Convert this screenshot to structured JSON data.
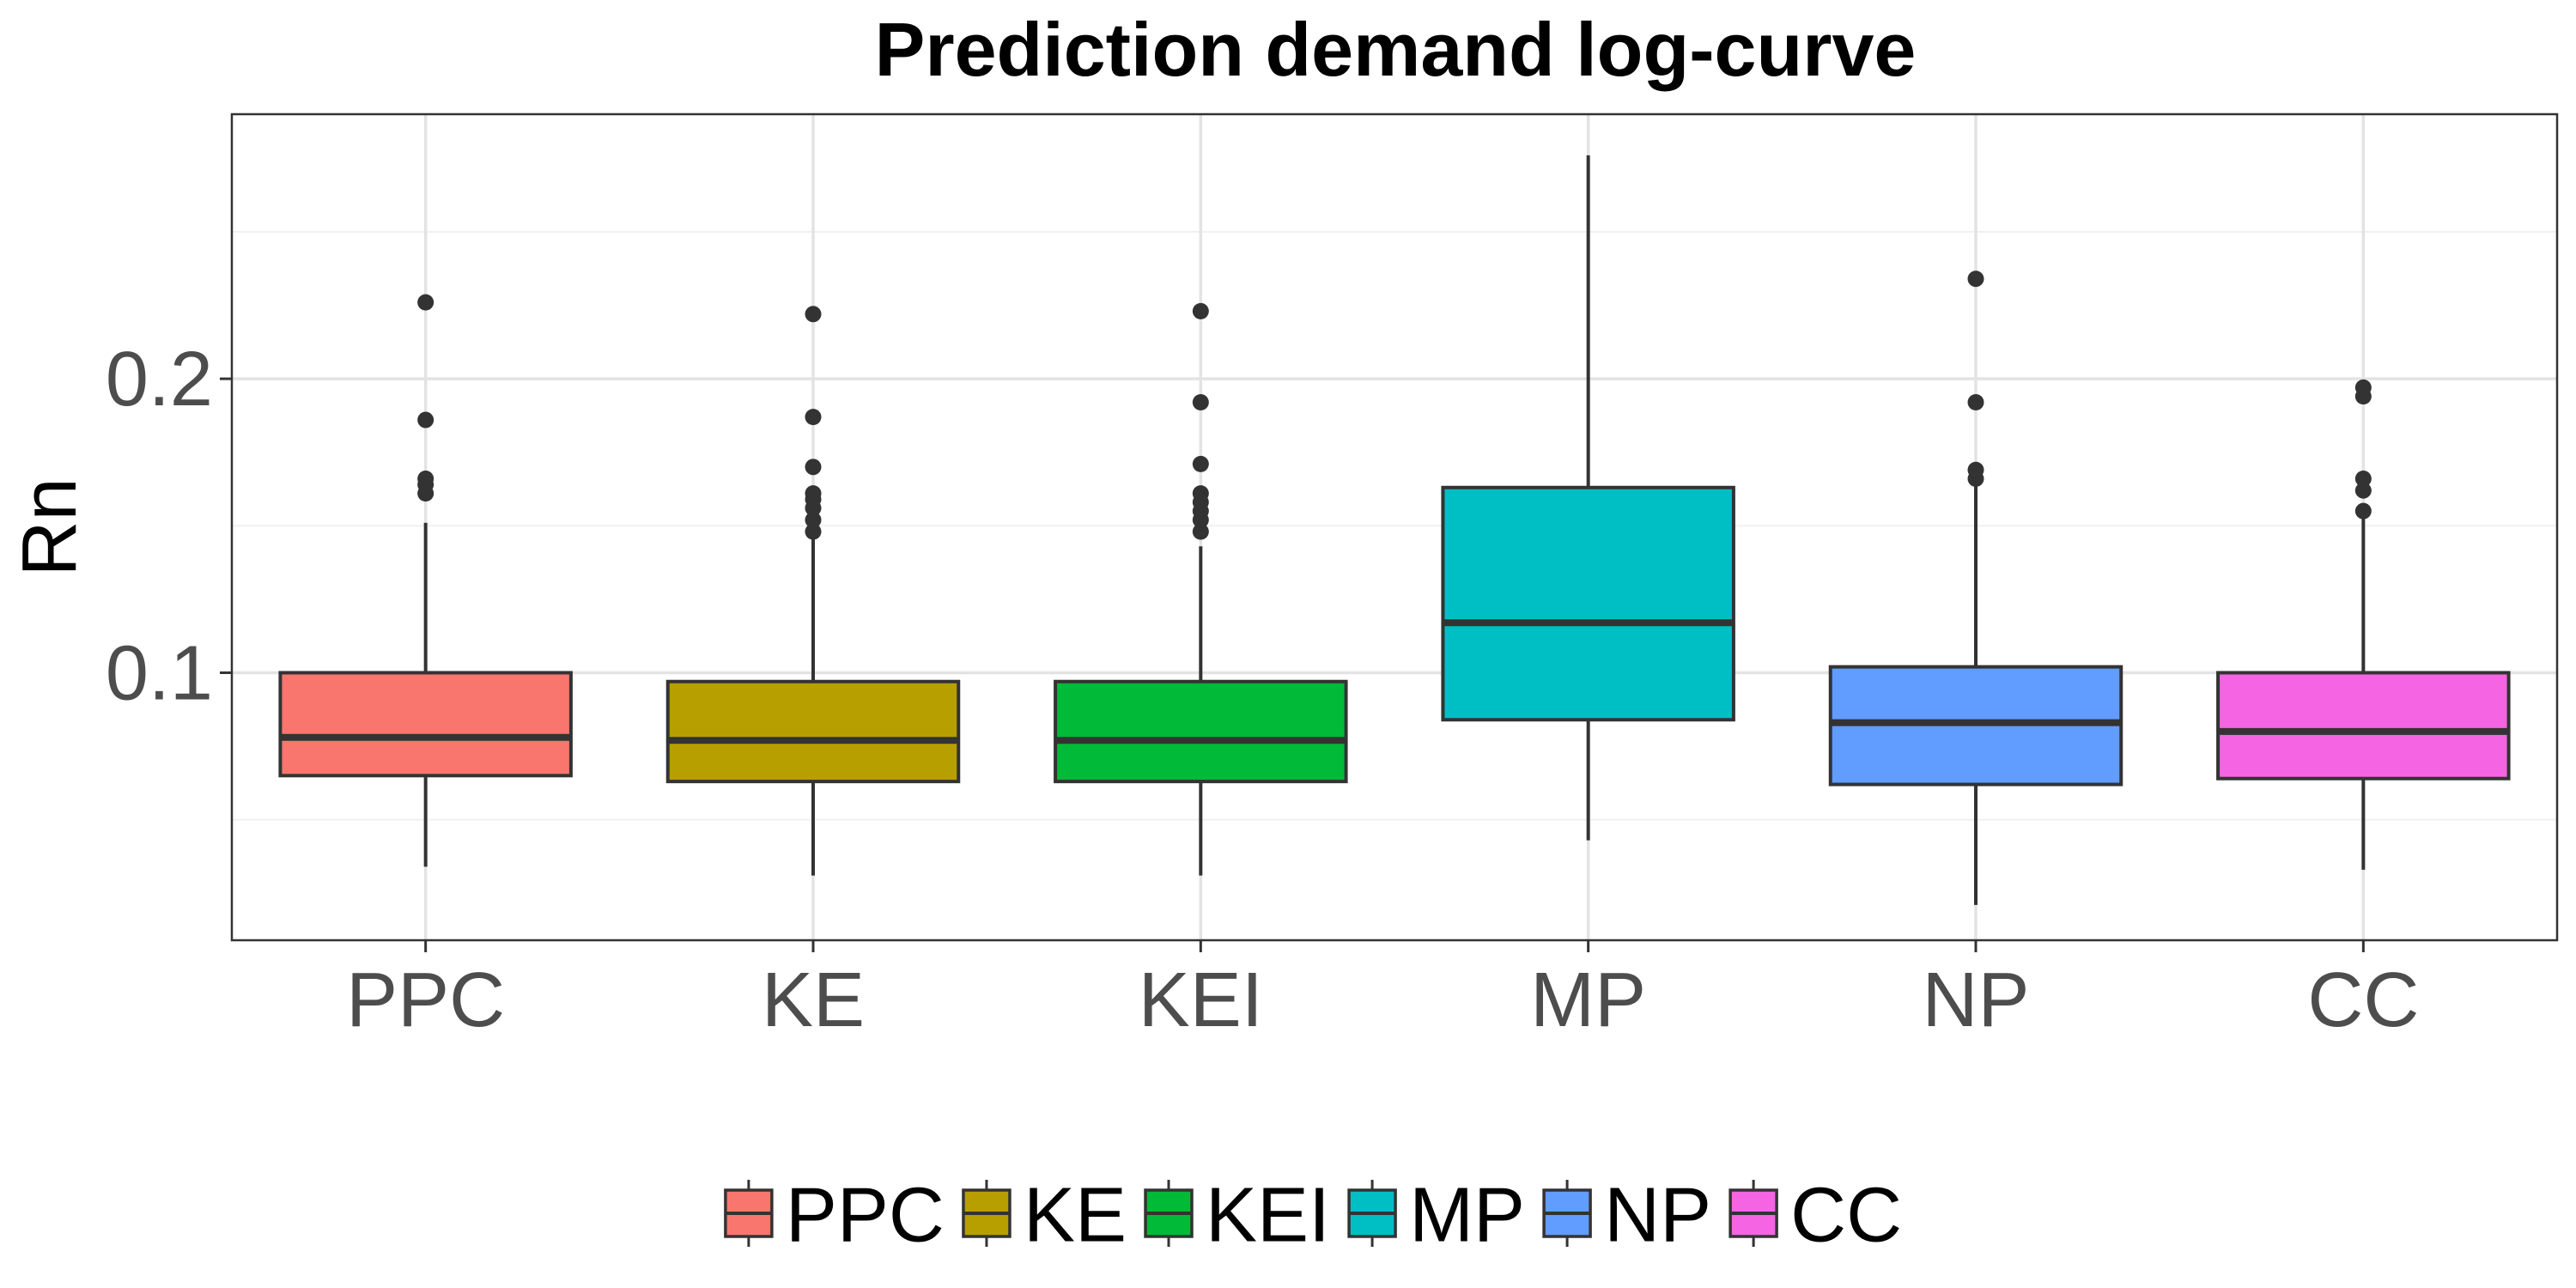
{
  "chart_data": {
    "type": "boxplot",
    "title": "Prediction demand log-curve",
    "xlabel": "",
    "ylabel": "Rn",
    "ylim": [
      0.009,
      0.29
    ],
    "yticks": [
      0.1,
      0.2
    ],
    "ytick_labels": [
      "0.1",
      "0.2"
    ],
    "grid": true,
    "legend_position": "bottom",
    "categories": [
      "PPC",
      "KE",
      "KEI",
      "MP",
      "NP",
      "CC"
    ],
    "series": [
      {
        "name": "PPC",
        "color": "#F8766D",
        "q1": 0.065,
        "median": 0.078,
        "q3": 0.1,
        "whisker_low": 0.034,
        "whisker_high": 0.151,
        "outliers": [
          0.161,
          0.164,
          0.166,
          0.186,
          0.226
        ]
      },
      {
        "name": "KE",
        "color": "#B79F00",
        "q1": 0.063,
        "median": 0.077,
        "q3": 0.097,
        "whisker_low": 0.031,
        "whisker_high": 0.146,
        "outliers": [
          0.148,
          0.152,
          0.156,
          0.159,
          0.161,
          0.17,
          0.187,
          0.222
        ]
      },
      {
        "name": "KEI",
        "color": "#00BA38",
        "q1": 0.063,
        "median": 0.077,
        "q3": 0.097,
        "whisker_low": 0.031,
        "whisker_high": 0.143,
        "outliers": [
          0.148,
          0.152,
          0.155,
          0.158,
          0.161,
          0.171,
          0.192,
          0.223
        ]
      },
      {
        "name": "MP",
        "color": "#00BFC4",
        "q1": 0.084,
        "median": 0.117,
        "q3": 0.163,
        "whisker_low": 0.043,
        "whisker_high": 0.276,
        "outliers": []
      },
      {
        "name": "NP",
        "color": "#619CFF",
        "q1": 0.062,
        "median": 0.083,
        "q3": 0.102,
        "whisker_low": 0.021,
        "whisker_high": 0.164,
        "outliers": [
          0.166,
          0.169,
          0.192,
          0.234
        ]
      },
      {
        "name": "CC",
        "color": "#F564E3",
        "q1": 0.064,
        "median": 0.08,
        "q3": 0.1,
        "whisker_low": 0.033,
        "whisker_high": 0.154,
        "outliers": [
          0.155,
          0.162,
          0.166,
          0.194,
          0.197
        ]
      }
    ]
  }
}
